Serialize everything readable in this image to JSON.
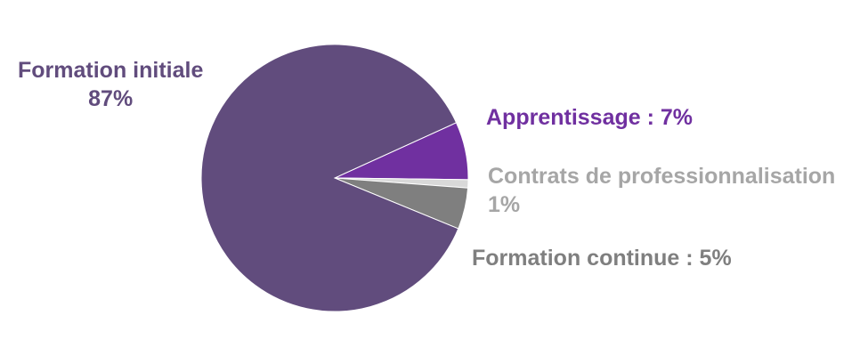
{
  "chart_data": {
    "type": "pie",
    "slices": [
      {
        "label": "Formation initiale",
        "value": 87,
        "value_label": "87%",
        "color": "#614c7d"
      },
      {
        "label": "Apprentissage",
        "value": 7,
        "value_label": "7%",
        "color": "#7030a0"
      },
      {
        "label": "Contrats de professionnalisation",
        "value": 1,
        "value_label": "1%",
        "color": "#d9d9d9"
      },
      {
        "label": "Formation continue",
        "value": 5,
        "value_label": "5%",
        "color": "#7f7f7f"
      }
    ],
    "labels": {
      "formation_initiale": {
        "line1": "Formation initiale",
        "line2": "87%"
      },
      "apprentissage": "Apprentissage : 7%",
      "contrats": {
        "line1": "Contrats de professionnalisation",
        "line2": "1%"
      },
      "formation_continue": "Formation continue : 5%"
    }
  }
}
